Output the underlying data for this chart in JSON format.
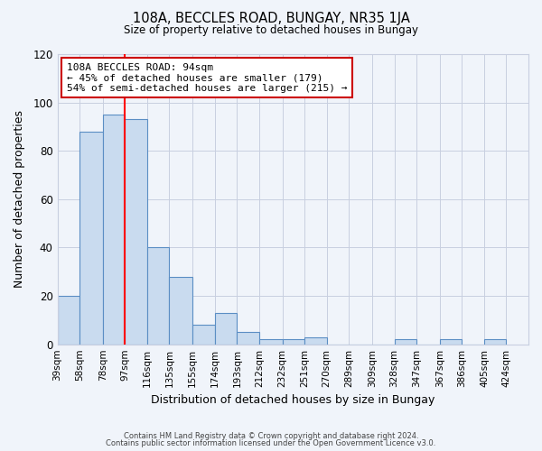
{
  "title": "108A, BECCLES ROAD, BUNGAY, NR35 1JA",
  "subtitle": "Size of property relative to detached houses in Bungay",
  "xlabel": "Distribution of detached houses by size in Bungay",
  "ylabel": "Number of detached properties",
  "bar_values": [
    20,
    88,
    95,
    93,
    40,
    28,
    8,
    13,
    5,
    2,
    2,
    3,
    0,
    0,
    0,
    2,
    0,
    2,
    0,
    2
  ],
  "bin_edges": [
    39,
    58,
    78,
    97,
    116,
    135,
    155,
    174,
    193,
    212,
    232,
    251,
    270,
    289,
    309,
    328,
    347,
    367,
    386,
    405,
    424
  ],
  "tick_labels": [
    "39sqm",
    "58sqm",
    "78sqm",
    "97sqm",
    "116sqm",
    "135sqm",
    "155sqm",
    "174sqm",
    "193sqm",
    "212sqm",
    "232sqm",
    "251sqm",
    "270sqm",
    "289sqm",
    "309sqm",
    "328sqm",
    "347sqm",
    "367sqm",
    "386sqm",
    "405sqm",
    "424sqm"
  ],
  "bar_color": "#c9dbef",
  "bar_edgecolor": "#5b8ec4",
  "redline_x": 97,
  "ylim": [
    0,
    120
  ],
  "yticks": [
    0,
    20,
    40,
    60,
    80,
    100,
    120
  ],
  "ann_title": "108A BECCLES ROAD: 94sqm",
  "ann_line1": "← 45% of detached houses are smaller (179)",
  "ann_line2": "54% of semi-detached houses are larger (215) →",
  "ann_box_color": "#cc0000",
  "footer1": "Contains HM Land Registry data © Crown copyright and database right 2024.",
  "footer2": "Contains public sector information licensed under the Open Government Licence v3.0.",
  "bg_color": "#f0f4fa",
  "grid_color": "#c8cfe0"
}
